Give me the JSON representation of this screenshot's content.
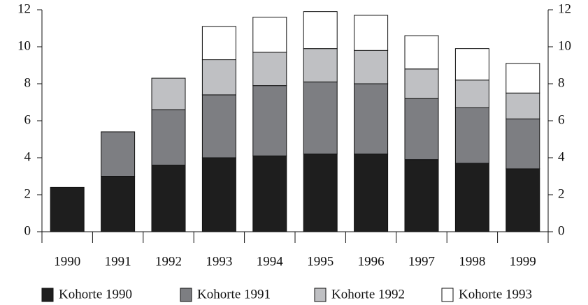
{
  "chart_data": {
    "type": "stacked-bar",
    "categories": [
      "1990",
      "1991",
      "1992",
      "1993",
      "1994",
      "1995",
      "1996",
      "1997",
      "1998",
      "1999"
    ],
    "series": [
      {
        "name": "Kohorte 1990",
        "color": "#1e1e1e",
        "values": [
          2.4,
          3.0,
          3.6,
          4.0,
          4.1,
          4.2,
          4.2,
          3.9,
          3.7,
          3.4
        ]
      },
      {
        "name": "Kohorte 1991",
        "color": "#7d7e82",
        "values": [
          null,
          2.4,
          3.0,
          3.4,
          3.8,
          3.9,
          3.8,
          3.3,
          3.0,
          2.7
        ]
      },
      {
        "name": "Kohorte 1992",
        "color": "#bfc0c3",
        "values": [
          null,
          null,
          1.7,
          1.9,
          1.8,
          1.8,
          1.8,
          1.6,
          1.5,
          1.4
        ]
      },
      {
        "name": "Kohorte 1993",
        "color": "#ffffff",
        "values": [
          null,
          null,
          null,
          1.8,
          1.9,
          2.0,
          1.9,
          1.8,
          1.7,
          1.6
        ]
      }
    ],
    "ylim": [
      0,
      12
    ],
    "yticks": [
      0,
      2,
      4,
      6,
      8,
      10,
      12
    ],
    "y2lim": [
      0,
      12
    ],
    "y2ticks": [
      0,
      2,
      4,
      6,
      8,
      10,
      12
    ]
  }
}
